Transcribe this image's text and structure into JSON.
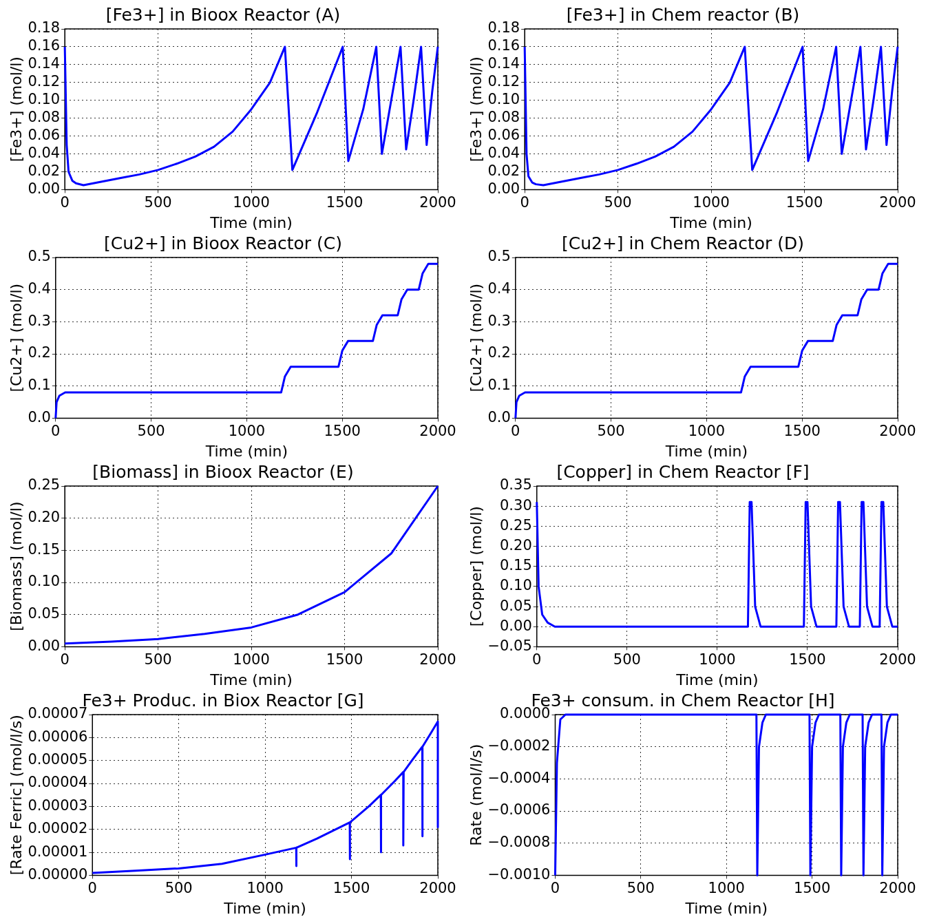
{
  "chart_data": [
    {
      "type": "line",
      "title": "[Fe3+] in Bioox Reactor (A)",
      "xlabel": "Time (min)",
      "ylabel": "[Fe3+] (mol/l)",
      "x": [
        0,
        10,
        20,
        40,
        60,
        100,
        200,
        300,
        400,
        500,
        600,
        700,
        800,
        900,
        1000,
        1100,
        1180,
        1220,
        1350,
        1490,
        1520,
        1600,
        1670,
        1700,
        1750,
        1800,
        1830,
        1870,
        1910,
        1940,
        1970,
        2000
      ],
      "values": [
        0.16,
        0.05,
        0.02,
        0.01,
        0.007,
        0.005,
        0.009,
        0.013,
        0.017,
        0.022,
        0.029,
        0.037,
        0.048,
        0.065,
        0.09,
        0.12,
        0.16,
        0.022,
        0.085,
        0.16,
        0.032,
        0.09,
        0.16,
        0.04,
        0.1,
        0.16,
        0.045,
        0.1,
        0.16,
        0.05,
        0.11,
        0.16
      ],
      "color": "#0000ff",
      "xlim": [
        0,
        2000
      ],
      "xticks": [
        0,
        500,
        1000,
        1500,
        2000
      ],
      "ylim": [
        0,
        0.18
      ],
      "yticks": [
        {
          "value": 0,
          "label": "0.00"
        },
        {
          "value": 0.02,
          "label": "0.02"
        },
        {
          "value": 0.04,
          "label": "0.04"
        },
        {
          "value": 0.06,
          "label": "0.06"
        },
        {
          "value": 0.08,
          "label": "0.08"
        },
        {
          "value": 0.1,
          "label": "0.10"
        },
        {
          "value": 0.12,
          "label": "0.12"
        },
        {
          "value": 0.14,
          "label": "0.14"
        },
        {
          "value": 0.16,
          "label": "0.16"
        },
        {
          "value": 0.18,
          "label": "0.18"
        }
      ],
      "grid": true
    },
    {
      "type": "line",
      "title": "[Fe3+] in Chem reactor (B)",
      "xlabel": "Time (min)",
      "ylabel": "[Fe3+] (mol/l)",
      "x": [
        0,
        10,
        20,
        40,
        60,
        100,
        200,
        300,
        400,
        500,
        600,
        700,
        800,
        900,
        1000,
        1100,
        1180,
        1220,
        1350,
        1490,
        1520,
        1600,
        1670,
        1700,
        1750,
        1800,
        1830,
        1870,
        1910,
        1940,
        1970,
        2000
      ],
      "values": [
        0.16,
        0.04,
        0.015,
        0.008,
        0.006,
        0.005,
        0.009,
        0.013,
        0.017,
        0.022,
        0.029,
        0.037,
        0.048,
        0.065,
        0.09,
        0.12,
        0.16,
        0.022,
        0.085,
        0.16,
        0.032,
        0.09,
        0.16,
        0.04,
        0.1,
        0.16,
        0.045,
        0.1,
        0.16,
        0.05,
        0.11,
        0.16
      ],
      "color": "#0000ff",
      "xlim": [
        0,
        2000
      ],
      "xticks": [
        0,
        500,
        1000,
        1500,
        2000
      ],
      "ylim": [
        0,
        0.18
      ],
      "yticks": [
        {
          "value": 0,
          "label": "0.00"
        },
        {
          "value": 0.02,
          "label": "0.02"
        },
        {
          "value": 0.04,
          "label": "0.04"
        },
        {
          "value": 0.06,
          "label": "0.06"
        },
        {
          "value": 0.08,
          "label": "0.08"
        },
        {
          "value": 0.1,
          "label": "0.10"
        },
        {
          "value": 0.12,
          "label": "0.12"
        },
        {
          "value": 0.14,
          "label": "0.14"
        },
        {
          "value": 0.16,
          "label": "0.16"
        },
        {
          "value": 0.18,
          "label": "0.18"
        }
      ],
      "grid": true
    },
    {
      "type": "line",
      "title": "[Cu2+] in Bioox Reactor (C)",
      "xlabel": "Time (min)",
      "ylabel": "[Cu2+] (mol/l)",
      "x": [
        0,
        5,
        20,
        50,
        1180,
        1200,
        1230,
        1480,
        1500,
        1530,
        1660,
        1680,
        1710,
        1790,
        1810,
        1840,
        1900,
        1920,
        1950,
        2000
      ],
      "values": [
        0,
        0.05,
        0.07,
        0.08,
        0.08,
        0.13,
        0.16,
        0.16,
        0.21,
        0.24,
        0.24,
        0.29,
        0.32,
        0.32,
        0.37,
        0.4,
        0.4,
        0.45,
        0.48,
        0.48
      ],
      "color": "#0000ff",
      "xlim": [
        0,
        2000
      ],
      "xticks": [
        0,
        500,
        1000,
        1500,
        2000
      ],
      "ylim": [
        0,
        0.5
      ],
      "yticks": [
        {
          "value": 0,
          "label": "0.0"
        },
        0.1,
        0.2,
        0.3,
        0.4,
        0.5
      ],
      "grid": true
    },
    {
      "type": "line",
      "title": "[Cu2+] in Chem Reactor (D)",
      "xlabel": "Time (min)",
      "ylabel": "[Cu2+] (mol/l)",
      "x": [
        0,
        5,
        20,
        50,
        1180,
        1200,
        1230,
        1480,
        1500,
        1530,
        1660,
        1680,
        1710,
        1790,
        1810,
        1840,
        1900,
        1920,
        1950,
        2000
      ],
      "values": [
        0,
        0.05,
        0.07,
        0.08,
        0.08,
        0.13,
        0.16,
        0.16,
        0.21,
        0.24,
        0.24,
        0.29,
        0.32,
        0.32,
        0.37,
        0.4,
        0.4,
        0.45,
        0.48,
        0.48
      ],
      "color": "#0000ff",
      "xlim": [
        0,
        2000
      ],
      "xticks": [
        0,
        500,
        1000,
        1500,
        2000
      ],
      "ylim": [
        0,
        0.5
      ],
      "yticks": [
        {
          "value": 0,
          "label": "0.0"
        },
        0.1,
        0.2,
        0.3,
        0.4,
        0.5
      ],
      "grid": true
    },
    {
      "type": "line",
      "title": "[Biomass] in Bioox Reactor (E)",
      "xlabel": "Time (min)",
      "ylabel": "[Biomass] (mol/l)",
      "x": [
        0,
        250,
        500,
        750,
        1000,
        1250,
        1500,
        1750,
        2000
      ],
      "values": [
        0.005,
        0.008,
        0.012,
        0.02,
        0.03,
        0.05,
        0.085,
        0.145,
        0.25
      ],
      "color": "#0000ff",
      "xlim": [
        0,
        2000
      ],
      "xticks": [
        0,
        500,
        1000,
        1500,
        2000
      ],
      "ylim": [
        0,
        0.25
      ],
      "yticks": [
        {
          "value": 0,
          "label": "0.00"
        },
        0.05,
        {
          "value": 0.1,
          "label": "0.10"
        },
        0.15,
        {
          "value": 0.2,
          "label": "0.20"
        },
        0.25
      ],
      "grid": true
    },
    {
      "type": "line",
      "title": "[Copper] in Chem Reactor [F]",
      "xlabel": "Time (min)",
      "ylabel": "[Copper] (mol/l)",
      "x": [
        0,
        10,
        30,
        60,
        100,
        1170,
        1180,
        1190,
        1210,
        1240,
        1480,
        1490,
        1500,
        1520,
        1550,
        1660,
        1670,
        1680,
        1700,
        1730,
        1790,
        1800,
        1810,
        1830,
        1860,
        1900,
        1910,
        1920,
        1940,
        1970,
        2000
      ],
      "values": [
        0.31,
        0.1,
        0.03,
        0.01,
        0,
        0,
        0.31,
        0.31,
        0.05,
        0,
        0,
        0.31,
        0.31,
        0.05,
        0,
        0,
        0.31,
        0.31,
        0.05,
        0,
        0,
        0.31,
        0.31,
        0.05,
        0,
        0,
        0.31,
        0.31,
        0.05,
        0,
        0
      ],
      "color": "#0000ff",
      "xlim": [
        0,
        2000
      ],
      "xticks": [
        0,
        500,
        1000,
        1500,
        2000
      ],
      "ylim": [
        -0.05,
        0.35
      ],
      "yticks": [
        {
          "value": -0.05,
          "label": "−0.05"
        },
        {
          "value": 0,
          "label": "0.00"
        },
        0.05,
        {
          "value": 0.1,
          "label": "0.10"
        },
        0.15,
        {
          "value": 0.2,
          "label": "0.20"
        },
        0.25,
        {
          "value": 0.3,
          "label": "0.30"
        },
        0.35
      ],
      "grid": true
    },
    {
      "type": "line",
      "title": "Fe3+ Produc. in Biox Reactor [G]",
      "xlabel": "Time (min)",
      "ylabel": "[Rate Ferric] (mol/l/s)",
      "x": [
        0,
        250,
        500,
        750,
        1000,
        1180,
        1180,
        1182,
        1300,
        1490,
        1490,
        1492,
        1600,
        1670,
        1670,
        1672,
        1750,
        1800,
        1800,
        1802,
        1850,
        1910,
        1910,
        1912,
        1960,
        2000,
        2000
      ],
      "values": [
        1e-06,
        2e-06,
        3e-06,
        5e-06,
        9e-06,
        1.2e-05,
        4e-06,
        1.2e-05,
        1.6e-05,
        2.3e-05,
        7e-06,
        2.3e-05,
        3e-05,
        3.5e-05,
        1e-05,
        3.5e-05,
        4.1e-05,
        4.5e-05,
        1.3e-05,
        4.5e-05,
        5e-05,
        5.6e-05,
        1.7e-05,
        5.6e-05,
        6.2e-05,
        6.7e-05,
        2.1e-05
      ],
      "color": "#0000ff",
      "xlim": [
        0,
        2000
      ],
      "xticks": [
        0,
        500,
        1000,
        1500,
        2000
      ],
      "ylim": [
        0,
        7e-05
      ],
      "yticks": [
        {
          "value": 0,
          "label": "0.00000"
        },
        {
          "value": 1e-05,
          "label": "0.00001"
        },
        {
          "value": 2e-05,
          "label": "0.00002"
        },
        {
          "value": 3e-05,
          "label": "0.00003"
        },
        {
          "value": 4e-05,
          "label": "0.00004"
        },
        {
          "value": 5e-05,
          "label": "0.00005"
        },
        {
          "value": 6e-05,
          "label": "0.00006"
        },
        {
          "value": 7e-05,
          "label": "0.00007"
        }
      ],
      "grid": true
    },
    {
      "type": "line",
      "title": "Fe3+ consum. in Chem Reactor [H]",
      "xlabel": "Time (min)",
      "ylabel": "Rate (mol/l/s)",
      "x": [
        0,
        10,
        30,
        60,
        1175,
        1180,
        1190,
        1210,
        1230,
        1485,
        1490,
        1500,
        1520,
        1540,
        1665,
        1670,
        1680,
        1700,
        1720,
        1795,
        1800,
        1810,
        1830,
        1850,
        1905,
        1910,
        1920,
        1940,
        1960,
        2000
      ],
      "values": [
        -0.001,
        -0.0003,
        -3e-05,
        0,
        0,
        -0.001,
        -0.0002,
        -5e-05,
        0,
        0,
        -0.001,
        -0.0002,
        -5e-05,
        0,
        0,
        -0.001,
        -0.0002,
        -5e-05,
        0,
        0,
        -0.001,
        -0.0002,
        -5e-05,
        0,
        0,
        -0.001,
        -0.0002,
        -5e-05,
        0,
        0
      ],
      "color": "#0000ff",
      "xlim": [
        0,
        2000
      ],
      "xticks": [
        0,
        500,
        1000,
        1500,
        2000
      ],
      "ylim": [
        -0.001,
        0
      ],
      "yticks": [
        {
          "value": -0.001,
          "label": "−0.0010"
        },
        {
          "value": -0.0008,
          "label": "−0.0008"
        },
        {
          "value": -0.0006,
          "label": "−0.0006"
        },
        {
          "value": -0.0004,
          "label": "−0.0004"
        },
        {
          "value": -0.0002,
          "label": "−0.0002"
        },
        {
          "value": 0,
          "label": "0.0000"
        }
      ],
      "grid": true
    }
  ]
}
